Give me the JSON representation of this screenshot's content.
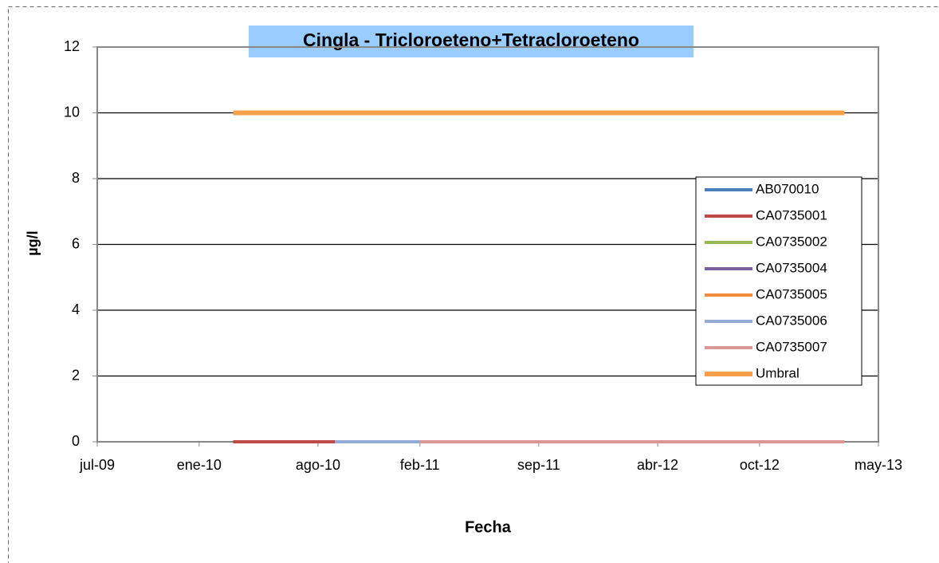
{
  "chart_data": {
    "type": "line",
    "title": "Cingla - Tricloroeteno+Tetracloroeteno",
    "x_label": "Fecha",
    "y_label": "µg/l",
    "xlim": [
      "2009-07",
      "2013-05"
    ],
    "xticks": [
      {
        "value": "2009-07",
        "label": "jul-09"
      },
      {
        "value": "2010-01",
        "label": "ene-10"
      },
      {
        "value": "2010-08",
        "label": "ago-10"
      },
      {
        "value": "2011-02",
        "label": "feb-11"
      },
      {
        "value": "2011-09",
        "label": "sep-11"
      },
      {
        "value": "2012-04",
        "label": "abr-12"
      },
      {
        "value": "2012-10",
        "label": "oct-12"
      },
      {
        "value": "2013-05",
        "label": "may-13"
      }
    ],
    "ylim": [
      0,
      12
    ],
    "yticks": [
      0,
      2,
      4,
      6,
      8,
      10,
      12
    ],
    "grid": true,
    "legend": "right",
    "series": [
      {
        "name": "AB070010",
        "color": "#4a7ebb",
        "x": [],
        "values": []
      },
      {
        "name": "CA0735001",
        "color": "#be4b48",
        "x": [
          "2010-03",
          "2010-09"
        ],
        "values": [
          0,
          0
        ]
      },
      {
        "name": "CA0735002",
        "color": "#98b954",
        "x": [],
        "values": []
      },
      {
        "name": "CA0735004",
        "color": "#7d60a0",
        "x": [],
        "values": []
      },
      {
        "name": "CA0735005",
        "color": "#f08c3c",
        "x": [],
        "values": []
      },
      {
        "name": "CA0735006",
        "color": "#94abd6",
        "x": [
          "2010-09",
          "2011-02"
        ],
        "values": [
          0,
          0
        ]
      },
      {
        "name": "CA0735007",
        "color": "#d99694",
        "x": [
          "2011-02",
          "2013-03"
        ],
        "values": [
          0,
          0
        ]
      },
      {
        "name": "Umbral",
        "color": "#f7a04c",
        "x": [
          "2010-03",
          "2013-03"
        ],
        "values": [
          10,
          10
        ]
      }
    ]
  }
}
